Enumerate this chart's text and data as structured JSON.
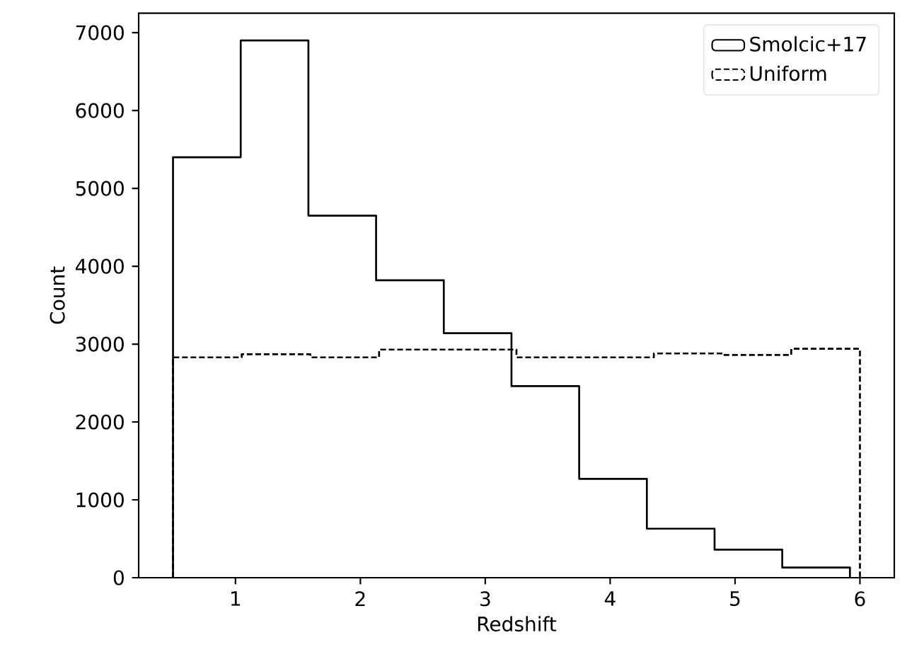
{
  "chart_data": {
    "type": "histogram",
    "xlabel": "Redshift",
    "ylabel": "Count",
    "xlim": [
      0.225,
      6.275
    ],
    "xticks": [
      1,
      2,
      3,
      4,
      5,
      6
    ],
    "ylim": [
      0,
      7250
    ],
    "yticks": [
      0,
      1000,
      2000,
      3000,
      4000,
      5000,
      6000,
      7000
    ],
    "legend": "top right",
    "bins": [
      0.5,
      1.05,
      1.6,
      2.15,
      2.7,
      3.25,
      3.8,
      4.35,
      4.9,
      5.45,
      6.0
    ],
    "series": [
      {
        "name": "Smolcic+17",
        "color": "#000000",
        "line_style": "solid",
        "bins": [
          0.5,
          1.042,
          1.584,
          2.126,
          2.668,
          3.21,
          3.752,
          4.294,
          4.836,
          5.378,
          5.92
        ],
        "values": [
          5400,
          6900,
          4650,
          3820,
          3140,
          2460,
          1270,
          630,
          360,
          130
        ]
      },
      {
        "name": "Uniform",
        "color": "#000000",
        "line_style": "dashed",
        "values": [
          2830,
          2870,
          2830,
          2930,
          2930,
          2830,
          2830,
          2880,
          2860,
          2940
        ]
      }
    ]
  }
}
